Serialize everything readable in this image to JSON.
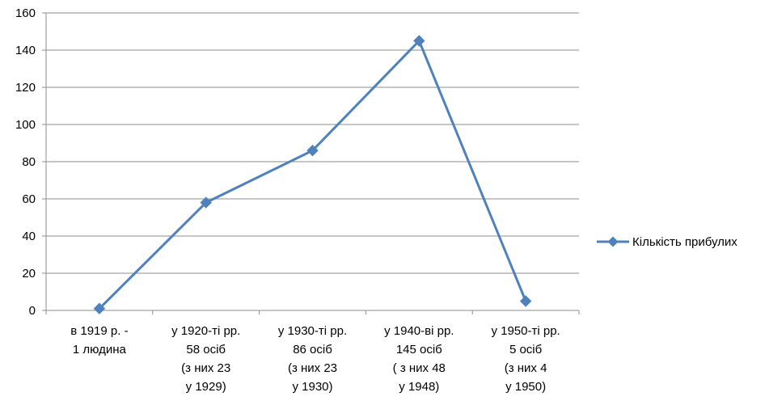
{
  "chart_data": {
    "type": "line",
    "categories": [
      [
        "в 1919  р. -",
        "1 людина"
      ],
      [
        "у 1920-ті  рр.",
        "58 осіб",
        "(з них  23",
        "у 1929)"
      ],
      [
        "у 1930-ті  рр.",
        "86 осіб",
        "(з них  23",
        "у 1930)"
      ],
      [
        "у 1940-ві рр.",
        "145 осіб",
        "( з них  48",
        "у 1948)"
      ],
      [
        "у 1950-ті рр.",
        "5 осіб",
        "(з них 4",
        "у 1950)"
      ]
    ],
    "series": [
      {
        "name": "Кількість прибулих",
        "values": [
          1,
          58,
          86,
          145,
          5
        ],
        "color": "#4f81bd",
        "marker": "diamond"
      }
    ],
    "ylim": [
      0,
      160
    ],
    "yticks": [
      "0",
      "20",
      "40",
      "60",
      "80",
      "100",
      "120",
      "140",
      "160"
    ],
    "grid": true,
    "legend_position": "right",
    "gridline_color": "#8c8c8c",
    "axis_color": "#8c8c8c"
  }
}
